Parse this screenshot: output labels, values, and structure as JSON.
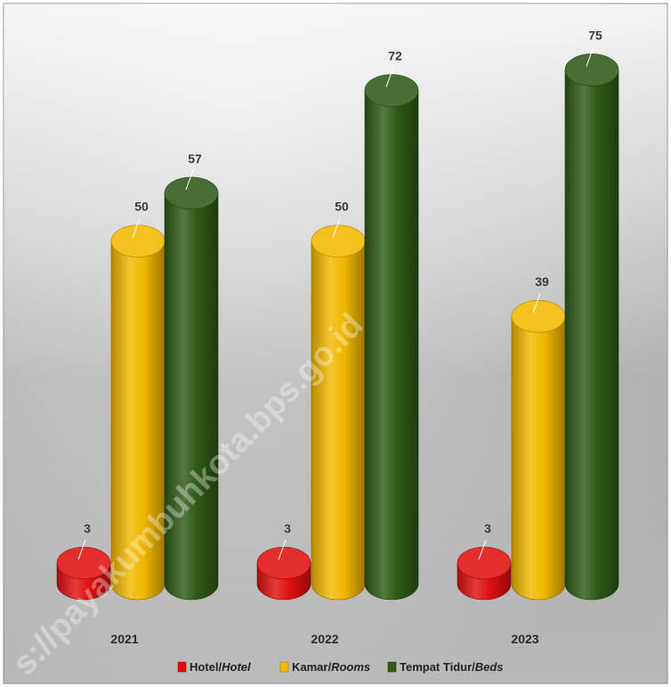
{
  "chart_data": {
    "type": "bar",
    "categories": [
      "2021",
      "2022",
      "2023"
    ],
    "series": [
      {
        "name": "Hotel/",
        "name_italic": "Hotel",
        "color": "#e01010",
        "values": [
          3,
          3,
          3
        ]
      },
      {
        "name": "Kamar/",
        "name_italic": "Rooms",
        "color": "#f2b800",
        "values": [
          50,
          50,
          39
        ]
      },
      {
        "name": "Tempat Tidur/",
        "name_italic": "Beds",
        "color": "#2f5a17",
        "values": [
          57,
          72,
          75
        ]
      }
    ],
    "legend_position": "bottom",
    "grid": false,
    "ylim": [
      0,
      80
    ],
    "style": "3d-cylinder"
  },
  "watermark": "s://payakumbuhkota.bps.go.id"
}
